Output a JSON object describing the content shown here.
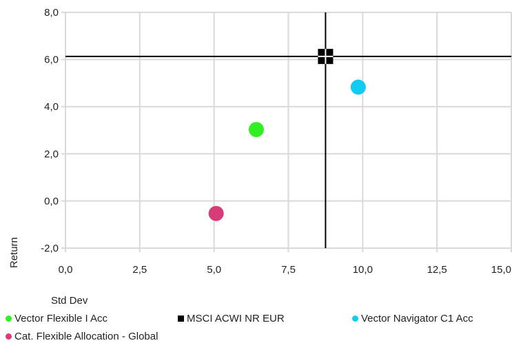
{
  "chart_data": {
    "type": "scatter",
    "xlabel": "Std Dev",
    "ylabel": "Return",
    "xlim": [
      0,
      15
    ],
    "ylim": [
      -2,
      8
    ],
    "x_ticks": [
      "0,0",
      "2,5",
      "5,0",
      "7,5",
      "10,0",
      "12,5",
      "15,0"
    ],
    "y_ticks": [
      "-2,0",
      "0,0",
      "2,0",
      "4,0",
      "6,0",
      "8,0"
    ],
    "grid": true,
    "benchmark_crosshair": {
      "x": 8.75,
      "y": 6.13
    },
    "series": [
      {
        "name": "Vector Flexible I Acc",
        "x": 6.42,
        "y": 3.03,
        "color": "#33ee22",
        "marker": "circle"
      },
      {
        "name": "MSCI ACWI NR EUR",
        "x": 8.75,
        "y": 6.13,
        "color": "#000000",
        "marker": "square"
      },
      {
        "name": "Vector Navigator C1 Acc",
        "x": 9.85,
        "y": 4.83,
        "color": "#11ccf0",
        "marker": "circle"
      },
      {
        "name": "Cat. Flexible Allocation - Global",
        "x": 5.07,
        "y": -0.53,
        "color": "#d63c77",
        "marker": "circle"
      }
    ],
    "legend_position": "bottom"
  }
}
